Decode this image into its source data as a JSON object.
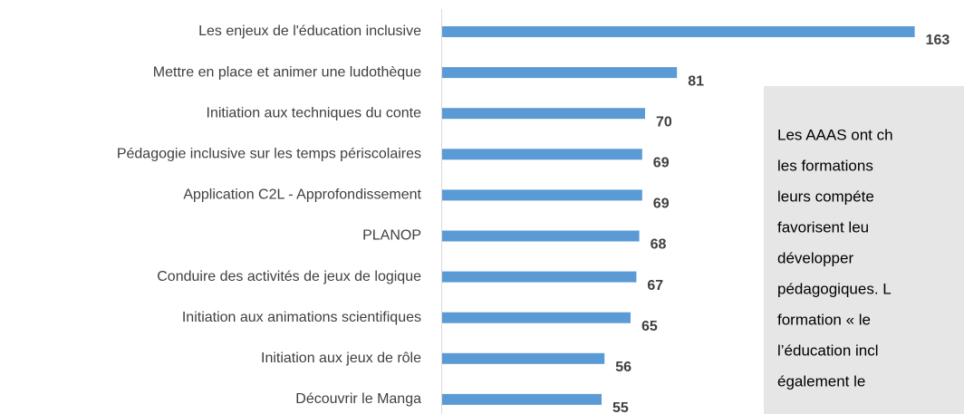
{
  "chart_data": {
    "type": "bar",
    "orientation": "horizontal",
    "categories": [
      "Les enjeux de l'éducation inclusive",
      "Mettre en place et animer une ludothèque",
      "Initiation aux techniques du conte",
      "Pédagogie inclusive sur les temps périscolaires",
      "Application C2L - Approfondissement",
      "PLANOP",
      "Conduire des activités de jeux de logique",
      "Initiation aux animations scientifiques",
      "Initiation aux jeux de rôle",
      "Découvrir le Manga"
    ],
    "values": [
      163,
      81,
      70,
      69,
      69,
      68,
      67,
      65,
      56,
      55
    ],
    "color": "#5b9bd5",
    "xlim": [
      0,
      180
    ],
    "annotation": [
      "Les AAAS ont ch",
      "les formations",
      "leurs compéte",
      "favorisent leu",
      "développer",
      "pédagogiques. L",
      "formation « le",
      "l’éducation incl",
      "également le"
    ]
  }
}
